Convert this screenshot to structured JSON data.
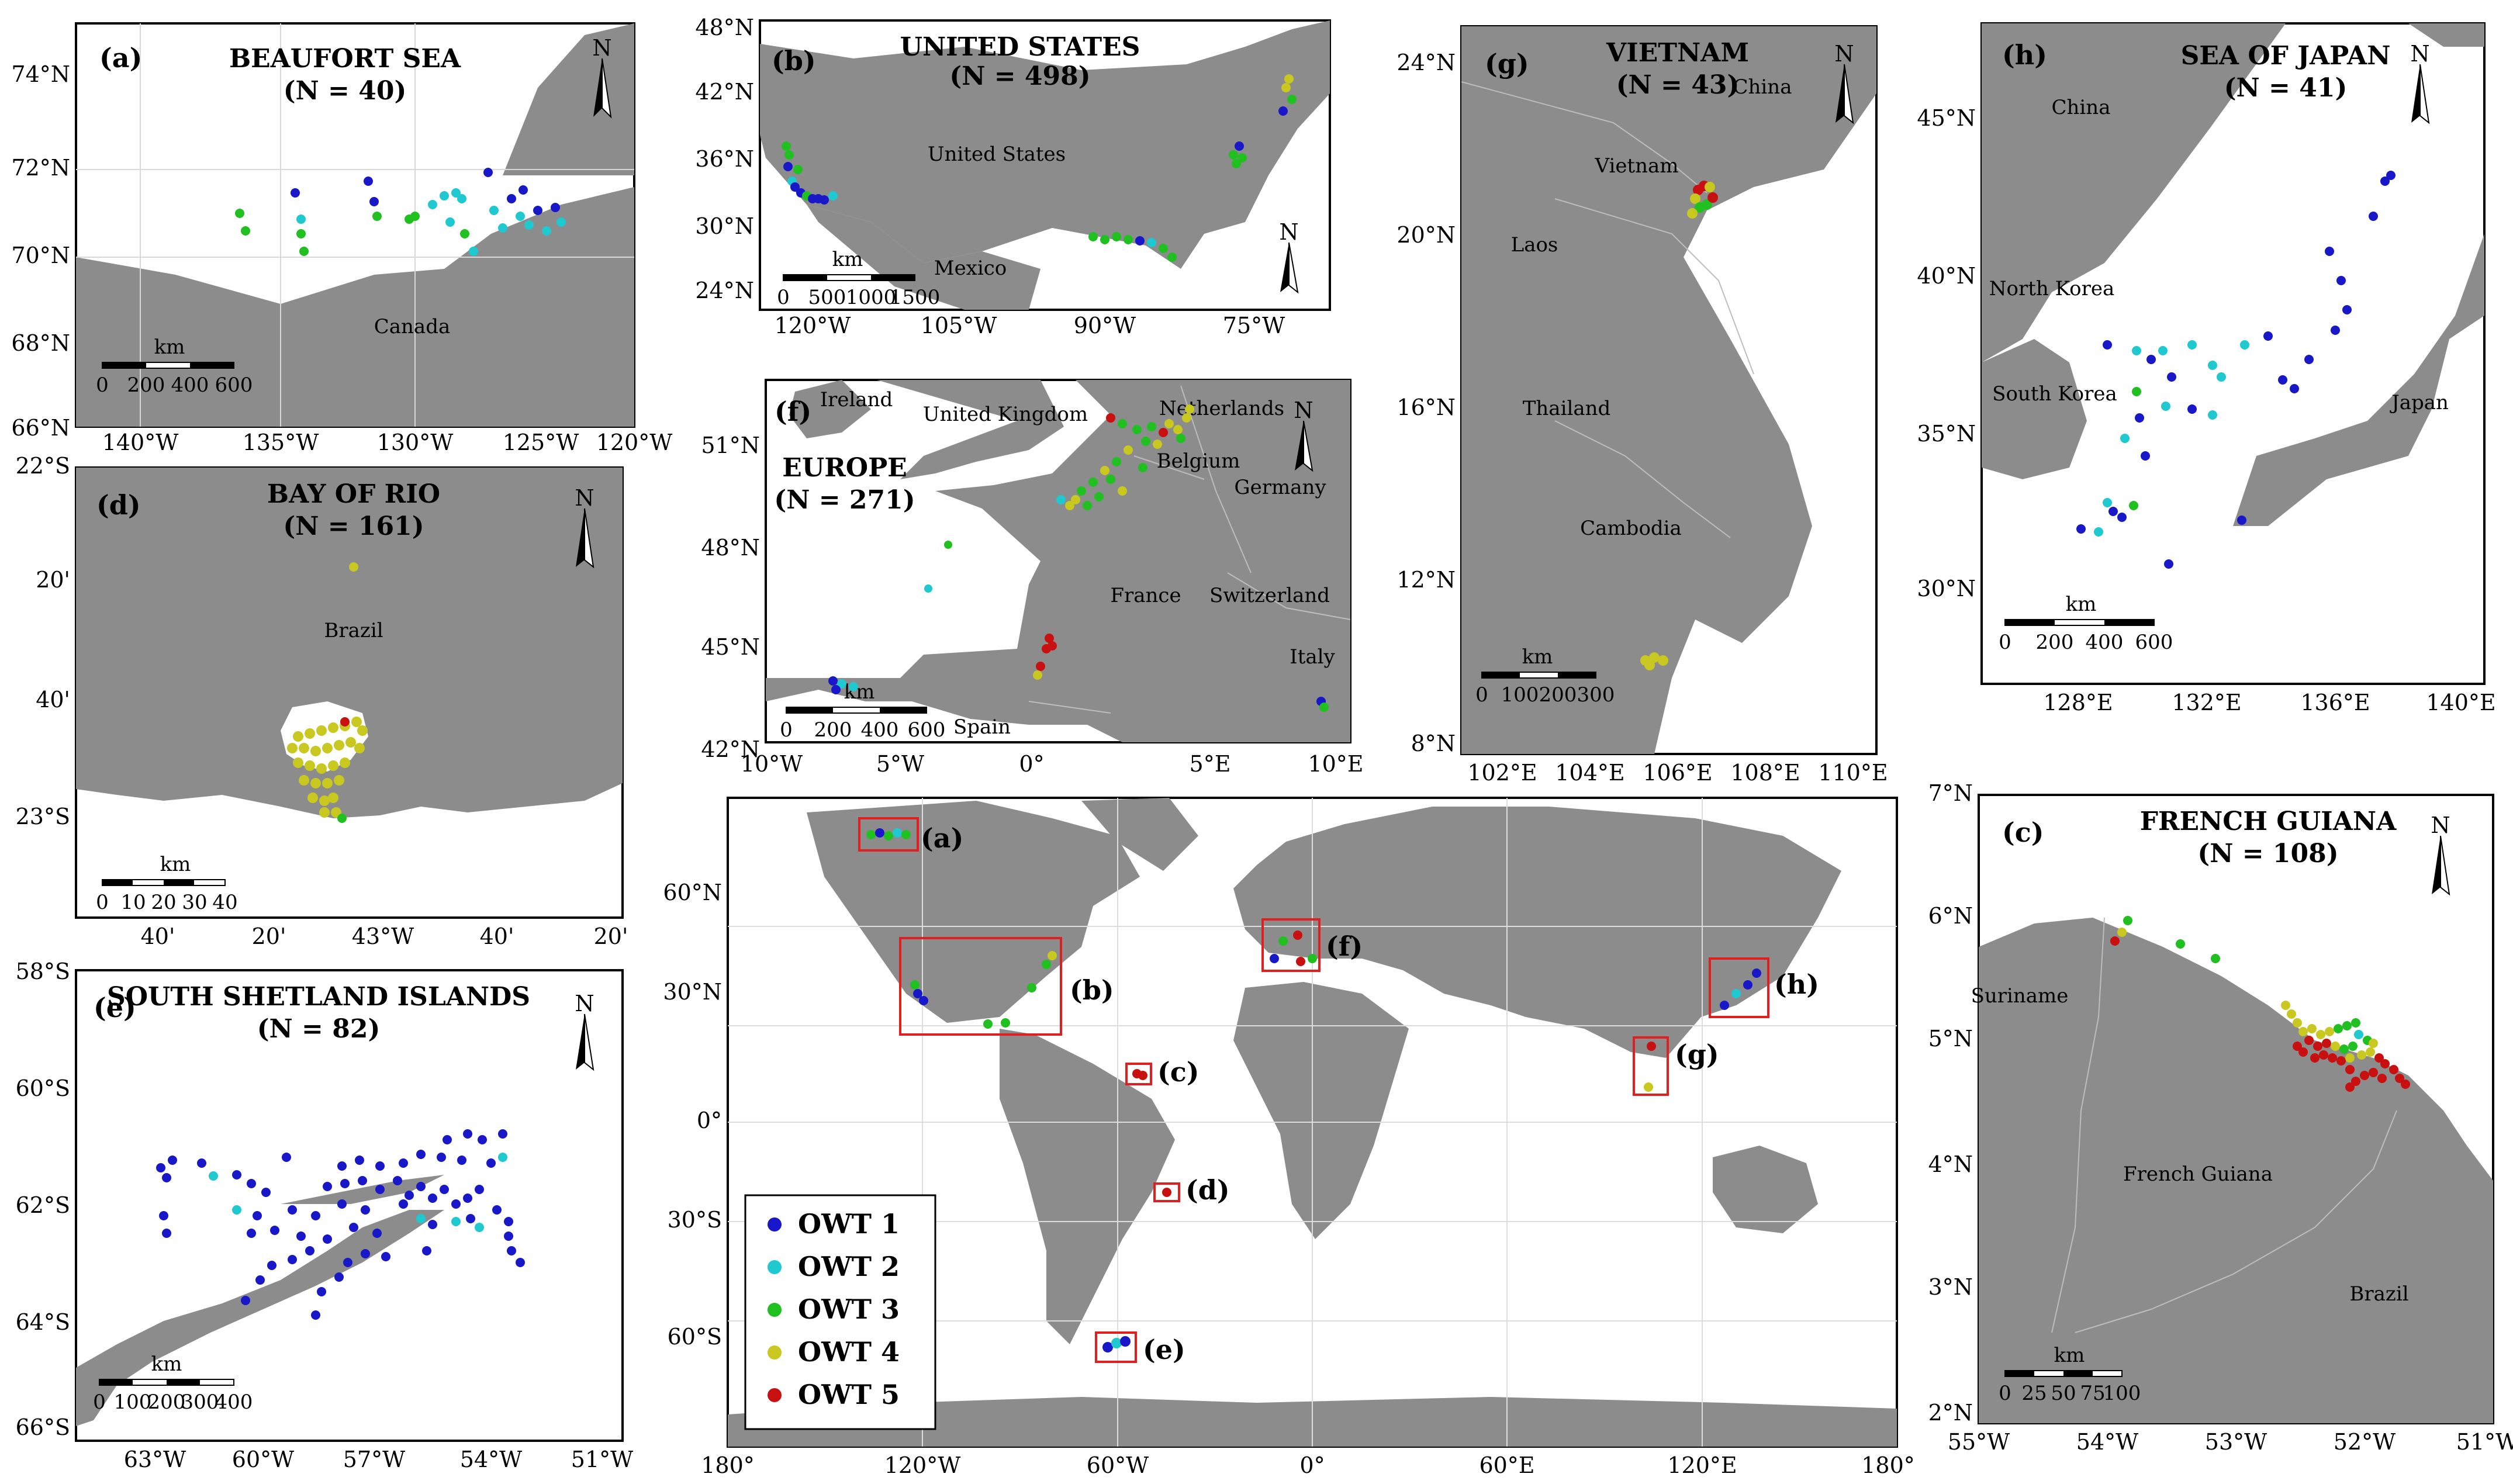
{
  "colors": {
    "land": "#8c8c8c",
    "ocean": "#ffffff",
    "grid": "#d0d0d0",
    "box": "#e02020",
    "OWT 1": "#1818c8",
    "OWT 2": "#20c8d0",
    "OWT 3": "#20c020",
    "OWT 4": "#c8c820",
    "OWT 5": "#c81010"
  },
  "legend": [
    "OWT 1",
    "OWT 2",
    "OWT 3",
    "OWT 4",
    "OWT 5"
  ],
  "panels": {
    "a": {
      "label": "(a)",
      "title": "BEAUFORT SEA",
      "n": "(N = 40)",
      "xticks": [
        "140°W",
        "135°W",
        "130°W",
        "125°W",
        "120°W"
      ],
      "yticks": [
        "74°N",
        "72°N",
        "70°N",
        "68°N",
        "66°N"
      ],
      "places": [
        "Canada"
      ],
      "scale": [
        "0",
        "200",
        "400",
        "600"
      ]
    },
    "b": {
      "label": "(b)",
      "title": "UNITED STATES",
      "n": "(N = 498)",
      "xticks": [
        "120°W",
        "105°W",
        "90°W",
        "75°W"
      ],
      "yticks": [
        "48°N",
        "42°N",
        "36°N",
        "30°N",
        "24°N"
      ],
      "places": [
        "United States",
        "Mexico"
      ],
      "scale": [
        "0",
        "500",
        "1000",
        "1500"
      ]
    },
    "d": {
      "label": "(d)",
      "title": "BAY OF RIO",
      "n": "(N = 161)",
      "xticks": [
        "40'",
        "20'",
        "43°W",
        "40'",
        "20'"
      ],
      "yticks": [
        "22°S",
        "20'",
        "40'",
        "23°S"
      ],
      "places": [
        "Brazil"
      ],
      "scale": [
        "0",
        "10",
        "20",
        "30",
        "40"
      ]
    },
    "f": {
      "label": "(f)",
      "title": "EUROPE",
      "n": "(N = 271)",
      "xticks": [
        "10°W",
        "5°W",
        "0°",
        "5°E",
        "10°E"
      ],
      "yticks": [
        "51°N",
        "48°N",
        "45°N",
        "42°N"
      ],
      "places": [
        "Ireland",
        "United Kingdom",
        "Netherlands",
        "Belgium",
        "Germany",
        "France",
        "Switzerland",
        "Italy",
        "Spain"
      ],
      "scale": [
        "0",
        "200",
        "400",
        "600"
      ]
    },
    "g": {
      "label": "(g)",
      "title": "VIETNAM",
      "n": "(N = 43)",
      "xticks": [
        "102°E",
        "104°E",
        "106°E",
        "108°E",
        "110°E"
      ],
      "yticks": [
        "24°N",
        "20°N",
        "16°N",
        "12°N",
        "8°N"
      ],
      "places": [
        "China",
        "Vietnam",
        "Laos",
        "Thailand",
        "Cambodia"
      ],
      "scale": [
        "0",
        "100",
        "200",
        "300"
      ]
    },
    "h": {
      "label": "(h)",
      "title": "SEA OF JAPAN",
      "n": "(N = 41)",
      "xticks": [
        "128°E",
        "132°E",
        "136°E",
        "140°E"
      ],
      "yticks": [
        "45°N",
        "40°N",
        "35°N",
        "30°N"
      ],
      "places": [
        "China",
        "North Korea",
        "South Korea",
        "Japan"
      ],
      "scale": [
        "0",
        "200",
        "400",
        "600"
      ]
    },
    "e": {
      "label": "(e)",
      "title": "SOUTH SHETLAND ISLANDS",
      "n": "(N = 82)",
      "xticks": [
        "63°W",
        "60°W",
        "57°W",
        "54°W",
        "51°W"
      ],
      "yticks": [
        "58°S",
        "60°S",
        "62°S",
        "64°S",
        "66°S"
      ],
      "scale": [
        "0",
        "100",
        "200",
        "300",
        "400"
      ]
    },
    "world": {
      "xticks": [
        "180°",
        "120°W",
        "60°W",
        "0°",
        "60°E",
        "120°E",
        "180°"
      ],
      "yticks": [
        "60°N",
        "30°N",
        "0°",
        "30°S",
        "60°S"
      ],
      "boxes": [
        "(a)",
        "(b)",
        "(c)",
        "(d)",
        "(e)",
        "(f)",
        "(g)",
        "(h)"
      ]
    },
    "c": {
      "label": "(c)",
      "title": "FRENCH GUIANA",
      "n": "(N = 108)",
      "xticks": [
        "55°W",
        "54°W",
        "53°W",
        "52°W",
        "51°W"
      ],
      "yticks": [
        "7°N",
        "6°N",
        "5°N",
        "4°N",
        "3°N",
        "2°N"
      ],
      "places": [
        "Suriname",
        "French Guiana",
        "Brazil"
      ],
      "scale": [
        "0",
        "25",
        "50",
        "75",
        "100"
      ]
    }
  },
  "units": {
    "km": "km",
    "north": "N"
  }
}
